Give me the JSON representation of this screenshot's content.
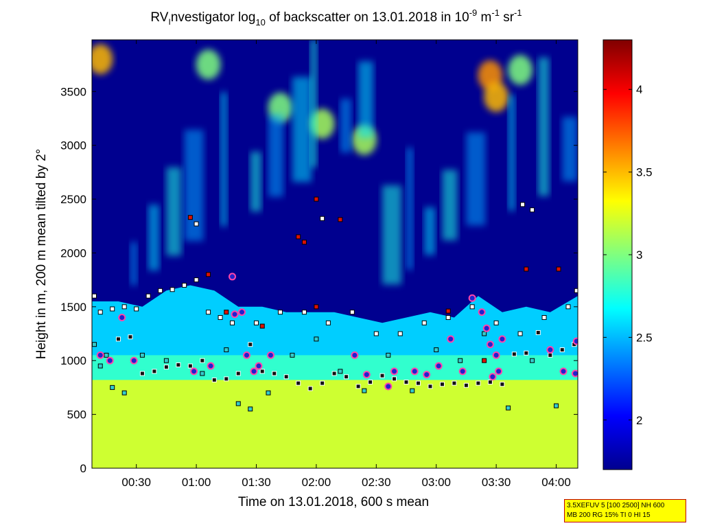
{
  "chart_data": {
    "type": "heatmap",
    "title": {
      "prefix": "RV",
      "prefix_sub": "I",
      "text1": "nvestigator log",
      "sub1": "10",
      "text2": " of backscatter on 13.01.2018 in 10",
      "sup1": "-9",
      "text3": " m",
      "sup2": "-1",
      "text4": " sr",
      "sup3": "-1"
    },
    "xlabel": "Time on 13.01.2018, 600 s mean",
    "ylabel": "Height in m, 200 m mean tilted by 2°",
    "x_unit": "hours",
    "xlim": [
      0.13,
      4.18
    ],
    "ylim": [
      0,
      3980
    ],
    "x_ticks": [
      {
        "value": 0.5,
        "label": "00:30"
      },
      {
        "value": 1.0,
        "label": "01:00"
      },
      {
        "value": 1.5,
        "label": "01:30"
      },
      {
        "value": 2.0,
        "label": "02:00"
      },
      {
        "value": 2.5,
        "label": "02:30"
      },
      {
        "value": 3.0,
        "label": "03:00"
      },
      {
        "value": 3.5,
        "label": "03:30"
      },
      {
        "value": 4.0,
        "label": "04:00"
      }
    ],
    "y_ticks": [
      {
        "value": 0,
        "label": "0"
      },
      {
        "value": 500,
        "label": "500"
      },
      {
        "value": 1000,
        "label": "1000"
      },
      {
        "value": 1500,
        "label": "1500"
      },
      {
        "value": 2000,
        "label": "2000"
      },
      {
        "value": 2500,
        "label": "2500"
      },
      {
        "value": 3000,
        "label": "3000"
      },
      {
        "value": 3500,
        "label": "3500"
      }
    ],
    "colorbar": {
      "min": 1.7,
      "max": 4.3,
      "colormap": "jet",
      "ticks": [
        {
          "value": 2.0,
          "label": "2"
        },
        {
          "value": 2.5,
          "label": "2.5"
        },
        {
          "value": 3.0,
          "label": "3"
        },
        {
          "value": 3.5,
          "label": "3.5"
        },
        {
          "value": 4.0,
          "label": "4"
        }
      ]
    },
    "boundary_layer_log10": 3.2,
    "layer_top_estimate_m": [
      {
        "t": 0.13,
        "h": 1550
      },
      {
        "t": 0.35,
        "h": 1550
      },
      {
        "t": 0.55,
        "h": 1500
      },
      {
        "t": 0.75,
        "h": 1650
      },
      {
        "t": 0.95,
        "h": 1700
      },
      {
        "t": 1.15,
        "h": 1650
      },
      {
        "t": 1.35,
        "h": 1500
      },
      {
        "t": 1.55,
        "h": 1500
      },
      {
        "t": 1.75,
        "h": 1450
      },
      {
        "t": 1.95,
        "h": 1450
      },
      {
        "t": 2.15,
        "h": 1450
      },
      {
        "t": 2.35,
        "h": 1400
      },
      {
        "t": 2.55,
        "h": 1350
      },
      {
        "t": 2.75,
        "h": 1400
      },
      {
        "t": 2.95,
        "h": 1450
      },
      {
        "t": 3.15,
        "h": 1400
      },
      {
        "t": 3.35,
        "h": 1600
      },
      {
        "t": 3.55,
        "h": 1450
      },
      {
        "t": 3.75,
        "h": 1500
      },
      {
        "t": 3.95,
        "h": 1450
      },
      {
        "t": 4.18,
        "h": 1600
      }
    ],
    "cloud_patches": [
      {
        "t": 0.2,
        "h": 3800,
        "value": 3.5
      },
      {
        "t": 3.45,
        "h": 3650,
        "value": 3.6
      },
      {
        "t": 3.5,
        "h": 3450,
        "value": 3.5
      },
      {
        "t": 2.4,
        "h": 3050,
        "value": 3.1
      },
      {
        "t": 1.1,
        "h": 3750,
        "value": 3.0
      },
      {
        "t": 1.7,
        "h": 3350,
        "value": 3.0
      },
      {
        "t": 2.05,
        "h": 3200,
        "value": 3.1
      },
      {
        "t": 3.7,
        "h": 3700,
        "value": 3.0
      }
    ],
    "bl_height_series": [
      {
        "name": "",
        "marker": "dark",
        "points": [
          {
            "t": 0.35,
            "h": 1200
          },
          {
            "t": 0.45,
            "h": 1220
          },
          {
            "t": 0.55,
            "h": 880
          },
          {
            "t": 0.65,
            "h": 900
          },
          {
            "t": 0.75,
            "h": 940
          },
          {
            "t": 0.85,
            "h": 960
          },
          {
            "t": 0.95,
            "h": 950
          },
          {
            "t": 1.05,
            "h": 1000
          },
          {
            "t": 1.15,
            "h": 820
          },
          {
            "t": 1.25,
            "h": 830
          },
          {
            "t": 1.35,
            "h": 880
          },
          {
            "t": 1.45,
            "h": 1150
          },
          {
            "t": 1.55,
            "h": 900
          },
          {
            "t": 1.65,
            "h": 880
          },
          {
            "t": 1.75,
            "h": 850
          },
          {
            "t": 1.85,
            "h": 790
          },
          {
            "t": 1.95,
            "h": 740
          },
          {
            "t": 2.05,
            "h": 790
          },
          {
            "t": 2.15,
            "h": 880
          },
          {
            "t": 2.25,
            "h": 850
          },
          {
            "t": 2.35,
            "h": 760
          },
          {
            "t": 2.45,
            "h": 800
          },
          {
            "t": 2.55,
            "h": 860
          },
          {
            "t": 2.65,
            "h": 830
          },
          {
            "t": 2.75,
            "h": 800
          },
          {
            "t": 2.85,
            "h": 790
          },
          {
            "t": 2.95,
            "h": 760
          },
          {
            "t": 3.05,
            "h": 780
          },
          {
            "t": 3.15,
            "h": 790
          },
          {
            "t": 3.25,
            "h": 770
          },
          {
            "t": 3.35,
            "h": 790
          },
          {
            "t": 3.45,
            "h": 800
          },
          {
            "t": 3.55,
            "h": 780
          },
          {
            "t": 3.65,
            "h": 1060
          },
          {
            "t": 3.75,
            "h": 1070
          },
          {
            "t": 3.85,
            "h": 1260
          },
          {
            "t": 3.95,
            "h": 1050
          },
          {
            "t": 4.05,
            "h": 1100
          },
          {
            "t": 4.15,
            "h": 1150
          }
        ]
      },
      {
        "name": "",
        "marker": "light",
        "points": [
          {
            "t": 0.15,
            "h": 1600
          },
          {
            "t": 0.2,
            "h": 1450
          },
          {
            "t": 0.3,
            "h": 1480
          },
          {
            "t": 0.4,
            "h": 1500
          },
          {
            "t": 0.5,
            "h": 1480
          },
          {
            "t": 0.6,
            "h": 1600
          },
          {
            "t": 0.7,
            "h": 1650
          },
          {
            "t": 0.8,
            "h": 1660
          },
          {
            "t": 0.9,
            "h": 1700
          },
          {
            "t": 1.0,
            "h": 1750
          },
          {
            "t": 1.1,
            "h": 1450
          },
          {
            "t": 1.2,
            "h": 1400
          },
          {
            "t": 1.3,
            "h": 1350
          },
          {
            "t": 1.5,
            "h": 1350
          },
          {
            "t": 1.7,
            "h": 1450
          },
          {
            "t": 1.9,
            "h": 1450
          },
          {
            "t": 2.1,
            "h": 1350
          },
          {
            "t": 2.3,
            "h": 1450
          },
          {
            "t": 2.5,
            "h": 1250
          },
          {
            "t": 2.7,
            "h": 1250
          },
          {
            "t": 2.9,
            "h": 1350
          },
          {
            "t": 3.1,
            "h": 1400
          },
          {
            "t": 3.3,
            "h": 1500
          },
          {
            "t": 3.5,
            "h": 1350
          },
          {
            "t": 3.7,
            "h": 1250
          },
          {
            "t": 3.9,
            "h": 1400
          },
          {
            "t": 4.1,
            "h": 1500
          },
          {
            "t": 4.17,
            "h": 1650
          },
          {
            "t": 1.0,
            "h": 2270
          },
          {
            "t": 2.05,
            "h": 2320
          },
          {
            "t": 3.72,
            "h": 2450
          },
          {
            "t": 3.8,
            "h": 2400
          }
        ]
      },
      {
        "name": "",
        "marker": "cyan",
        "points": [
          {
            "t": 0.15,
            "h": 1150
          },
          {
            "t": 0.2,
            "h": 950
          },
          {
            "t": 0.25,
            "h": 1050
          },
          {
            "t": 0.3,
            "h": 750
          },
          {
            "t": 0.4,
            "h": 700
          },
          {
            "t": 0.55,
            "h": 1050
          },
          {
            "t": 0.75,
            "h": 1000
          },
          {
            "t": 1.05,
            "h": 880
          },
          {
            "t": 1.25,
            "h": 1100
          },
          {
            "t": 1.35,
            "h": 600
          },
          {
            "t": 1.45,
            "h": 550
          },
          {
            "t": 1.6,
            "h": 700
          },
          {
            "t": 1.8,
            "h": 1050
          },
          {
            "t": 2.0,
            "h": 1200
          },
          {
            "t": 2.2,
            "h": 900
          },
          {
            "t": 2.4,
            "h": 720
          },
          {
            "t": 2.6,
            "h": 1050
          },
          {
            "t": 2.8,
            "h": 720
          },
          {
            "t": 3.0,
            "h": 1100
          },
          {
            "t": 3.2,
            "h": 1000
          },
          {
            "t": 3.4,
            "h": 1250
          },
          {
            "t": 3.6,
            "h": 560
          },
          {
            "t": 3.8,
            "h": 1000
          },
          {
            "t": 4.0,
            "h": 580
          }
        ]
      },
      {
        "name": "",
        "marker": "red",
        "points": [
          {
            "t": 0.95,
            "h": 2330
          },
          {
            "t": 2.0,
            "h": 2500
          },
          {
            "t": 2.2,
            "h": 2310
          },
          {
            "t": 1.85,
            "h": 2150
          },
          {
            "t": 1.9,
            "h": 2100
          },
          {
            "t": 3.75,
            "h": 1850
          },
          {
            "t": 4.02,
            "h": 1850
          },
          {
            "t": 1.1,
            "h": 1800
          },
          {
            "t": 1.25,
            "h": 1450
          },
          {
            "t": 1.55,
            "h": 1320
          },
          {
            "t": 2.0,
            "h": 1500
          },
          {
            "t": 3.1,
            "h": 1460
          },
          {
            "t": 3.4,
            "h": 1000
          }
        ]
      },
      {
        "name": "",
        "marker": "circle",
        "points": [
          {
            "t": 0.2,
            "h": 1050
          },
          {
            "t": 0.28,
            "h": 1000
          },
          {
            "t": 0.38,
            "h": 1400
          },
          {
            "t": 0.48,
            "h": 1000
          },
          {
            "t": 0.98,
            "h": 900
          },
          {
            "t": 1.12,
            "h": 950
          },
          {
            "t": 1.3,
            "h": 1780
          },
          {
            "t": 1.32,
            "h": 1430
          },
          {
            "t": 1.38,
            "h": 1450
          },
          {
            "t": 1.42,
            "h": 1050
          },
          {
            "t": 1.48,
            "h": 900
          },
          {
            "t": 1.52,
            "h": 950
          },
          {
            "t": 1.62,
            "h": 1050
          },
          {
            "t": 2.32,
            "h": 1050
          },
          {
            "t": 2.42,
            "h": 870
          },
          {
            "t": 2.6,
            "h": 760
          },
          {
            "t": 2.65,
            "h": 900
          },
          {
            "t": 2.82,
            "h": 900
          },
          {
            "t": 2.92,
            "h": 870
          },
          {
            "t": 3.02,
            "h": 950
          },
          {
            "t": 3.12,
            "h": 1200
          },
          {
            "t": 3.22,
            "h": 900
          },
          {
            "t": 3.3,
            "h": 1580
          },
          {
            "t": 3.38,
            "h": 1450
          },
          {
            "t": 3.42,
            "h": 1300
          },
          {
            "t": 3.45,
            "h": 1150
          },
          {
            "t": 3.47,
            "h": 850
          },
          {
            "t": 3.5,
            "h": 1050
          },
          {
            "t": 3.52,
            "h": 900
          },
          {
            "t": 3.55,
            "h": 1200
          },
          {
            "t": 3.95,
            "h": 1100
          },
          {
            "t": 4.06,
            "h": 900
          },
          {
            "t": 4.16,
            "h": 880
          },
          {
            "t": 4.17,
            "h": 1180
          }
        ]
      }
    ]
  },
  "info_box": {
    "line1": "3.5XEFUV 5 [100 2500] NH 600",
    "line2": "MB 200 RG 15% TI 0 HI 15"
  }
}
